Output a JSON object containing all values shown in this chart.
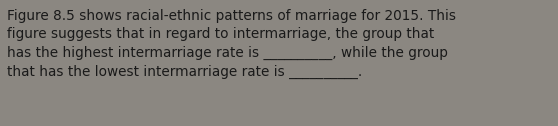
{
  "text_line1": "Figure 8.5 shows racial-ethnic patterns of marriage for 2015. This",
  "text_line2": "figure suggests that in regard to intermarriage, the group that",
  "text_line3": "has the highest intermarriage rate is __________, while the group",
  "text_line4": "that has the lowest intermarriage rate is __________.",
  "background_color": "#8b8781",
  "text_color": "#1a1a1a",
  "font_size": 9.8,
  "fig_width": 5.58,
  "fig_height": 1.26,
  "dpi": 100
}
